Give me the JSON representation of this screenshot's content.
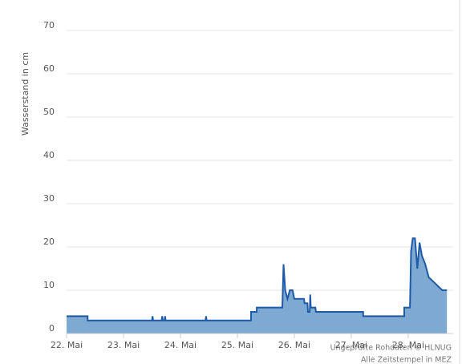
{
  "chart_data": {
    "type": "area",
    "y_label": "Wasserstand in cm",
    "credits": [
      "Ungeprüfte Rohdaten © HLNUG",
      "Alle Zeitstempel in MEZ"
    ],
    "color": "#1f5aa6",
    "fill": "#7ea9d3",
    "grid": true,
    "x": [
      22.0,
      22.37,
      22.37,
      23.5,
      23.51,
      23.52,
      23.67,
      23.68,
      23.69,
      23.72,
      23.73,
      23.74,
      24.44,
      24.45,
      24.46,
      25.24,
      25.24,
      25.34,
      25.34,
      25.79,
      25.81,
      25.84,
      25.88,
      25.92,
      25.97,
      26.0,
      26.17,
      26.18,
      26.23,
      26.24,
      26.27,
      26.28,
      26.29,
      26.37,
      26.38,
      27.21,
      27.21,
      27.93,
      27.93,
      28.03,
      28.05,
      28.08,
      28.12,
      28.16,
      28.2,
      28.24,
      28.3,
      28.36,
      28.44,
      28.52,
      28.6,
      28.68
    ],
    "values": [
      4,
      4,
      3,
      3,
      4,
      3,
      3,
      4,
      3,
      3,
      4,
      3,
      3,
      4,
      3,
      3,
      5,
      5,
      6,
      6,
      16,
      10,
      8,
      10,
      10,
      8,
      8,
      7,
      7,
      5,
      5,
      9,
      6,
      6,
      5,
      5,
      4,
      4,
      6,
      6,
      19,
      22,
      22,
      15,
      21,
      18,
      16,
      13,
      12,
      11,
      10,
      10
    ],
    "xlim": [
      22,
      28.79
    ],
    "xticks": [
      {
        "value": 22,
        "label": "22. Mai"
      },
      {
        "value": 23,
        "label": "23. Mai"
      },
      {
        "value": 24,
        "label": "24. Mai"
      },
      {
        "value": 25,
        "label": "25. Mai"
      },
      {
        "value": 26,
        "label": "26. Mai"
      },
      {
        "value": 27,
        "label": "27. Mai"
      },
      {
        "value": 28,
        "label": "28. Mai"
      }
    ],
    "ylim": [
      0,
      70
    ],
    "yticks": [
      0,
      10,
      20,
      30,
      40,
      50,
      60,
      70
    ]
  }
}
